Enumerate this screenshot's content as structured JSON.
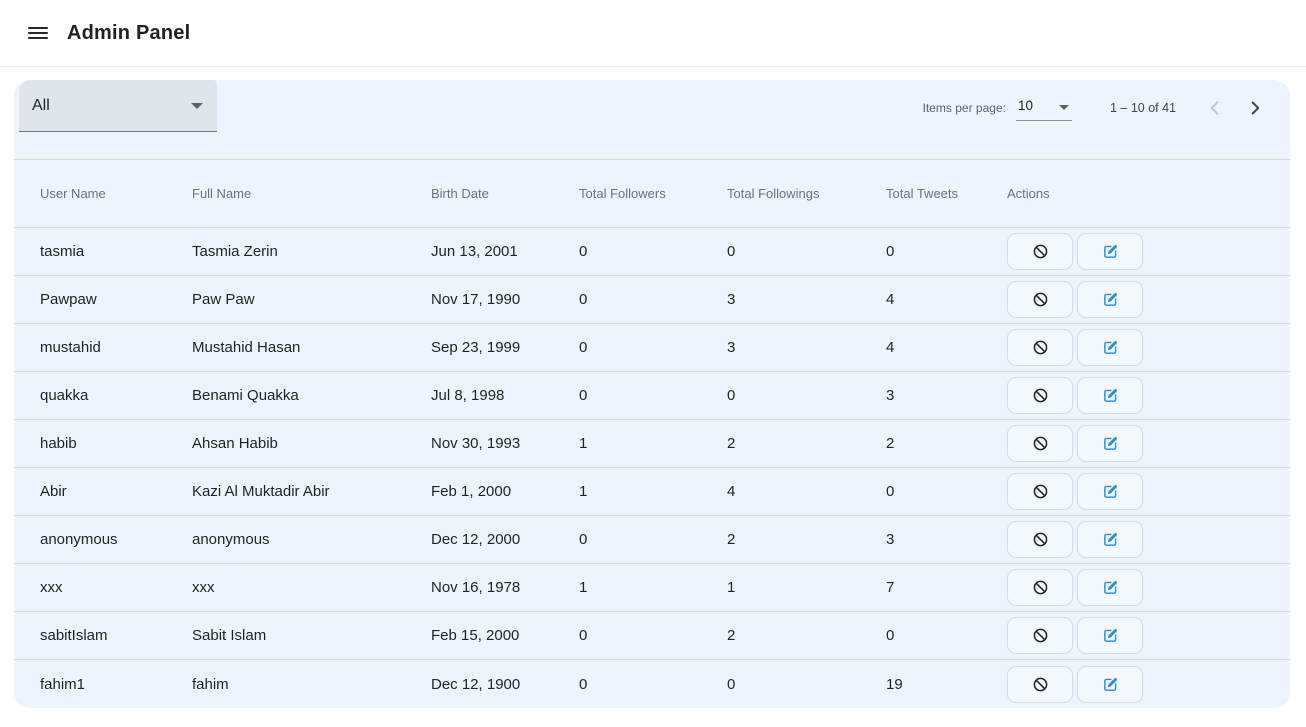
{
  "topbar": {
    "title": "Admin Panel"
  },
  "toolbar": {
    "filter_value": "All"
  },
  "paginator": {
    "items_per_page_label": "Items per page:",
    "items_per_page_value": "10",
    "range_label": "1 – 10 of 41"
  },
  "table": {
    "columns": [
      "User Name",
      "Full Name",
      "Birth Date",
      "Total Followers",
      "Total Followings",
      "Total Tweets",
      "Actions"
    ],
    "row_actions": [
      "block",
      "edit"
    ],
    "rows": [
      {
        "user_name": "tasmia",
        "full_name": "Tasmia Zerin",
        "birth_date": "Jun 13, 2001",
        "total_followers": "0",
        "total_followings": "0",
        "total_tweets": "0"
      },
      {
        "user_name": "Pawpaw",
        "full_name": "Paw Paw",
        "birth_date": "Nov 17, 1990",
        "total_followers": "0",
        "total_followings": "3",
        "total_tweets": "4"
      },
      {
        "user_name": "mustahid",
        "full_name": "Mustahid Hasan",
        "birth_date": "Sep 23, 1999",
        "total_followers": "0",
        "total_followings": "3",
        "total_tweets": "4"
      },
      {
        "user_name": "quakka",
        "full_name": "Benami Quakka",
        "birth_date": "Jul 8, 1998",
        "total_followers": "0",
        "total_followings": "0",
        "total_tweets": "3"
      },
      {
        "user_name": "habib",
        "full_name": "Ahsan Habib",
        "birth_date": "Nov 30, 1993",
        "total_followers": "1",
        "total_followings": "2",
        "total_tweets": "2"
      },
      {
        "user_name": "Abir",
        "full_name": "Kazi Al Muktadir Abir",
        "birth_date": "Feb 1, 2000",
        "total_followers": "1",
        "total_followings": "4",
        "total_tweets": "0"
      },
      {
        "user_name": "anonymous",
        "full_name": "anonymous",
        "birth_date": "Dec 12, 2000",
        "total_followers": "0",
        "total_followings": "2",
        "total_tweets": "3"
      },
      {
        "user_name": "xxx",
        "full_name": "xxx",
        "birth_date": "Nov 16, 1978",
        "total_followers": "1",
        "total_followings": "1",
        "total_tweets": "7"
      },
      {
        "user_name": "sabitIslam",
        "full_name": "Sabit Islam",
        "birth_date": "Feb 15, 2000",
        "total_followers": "0",
        "total_followings": "2",
        "total_tweets": "0"
      },
      {
        "user_name": "fahim1",
        "full_name": "fahim",
        "birth_date": "Dec 12, 1900",
        "total_followers": "0",
        "total_followings": "0",
        "total_tweets": "19"
      }
    ]
  },
  "icons": {
    "menu": "hamburger-menu",
    "filter_caret": "chevron-down",
    "items_per_page_caret": "chevron-down",
    "prev_page": "chevron-left",
    "next_page": "chevron-right",
    "block_action": "ban-circle-slash",
    "edit_action": "pen-in-square"
  },
  "colors": {
    "card_bg": "#edf4fc",
    "edit_icon_blue": "#2b87e8",
    "ban_icon_dark": "#1d2024",
    "row_divider": "#d5dadf",
    "action_button_bg": "#f4f9fe",
    "action_button_border": "#d3dce7"
  }
}
